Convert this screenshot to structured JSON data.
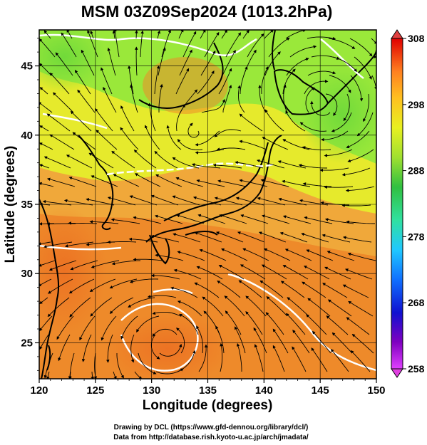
{
  "title": "MSM 03Z09Sep2024 (1013.2hPa)",
  "x_axis": {
    "label": "Longitude (degrees)",
    "ticks": [
      "120",
      "125",
      "130",
      "135",
      "140",
      "145",
      "150"
    ],
    "range": [
      120,
      150
    ]
  },
  "y_axis": {
    "label": "Latitude  (degrees)",
    "ticks": [
      "25",
      "30",
      "35",
      "40",
      "45"
    ],
    "range": [
      22.4,
      47.6
    ]
  },
  "colorbar": {
    "ticks": [
      "308",
      "298",
      "288",
      "278",
      "268",
      "258"
    ],
    "range": [
      258,
      308
    ],
    "colors": [
      "#e040ff",
      "#8000c0",
      "#1010d0",
      "#1070ff",
      "#20c8ff",
      "#30e0a0",
      "#30c040",
      "#a0e030",
      "#e8f020",
      "#ffc020",
      "#ff8020",
      "#ff3010",
      "#e00000"
    ]
  },
  "credits": {
    "line1": "Drawing by DCL (https://www.gfd-dennou.org/library/dcl/)",
    "line2": "Data from http://database.rish.kyoto-u.ac.jp/arch/jmadata/"
  },
  "map": {
    "field_colors": {
      "cool": "#9ae83a",
      "mild": "#e6ea2c",
      "warm": "#f0b636",
      "hot": "#ee8a2a",
      "very_hot": "#ec6e22",
      "coast": "#000000",
      "streamline": "#000000",
      "contour": "#ffffff"
    }
  }
}
